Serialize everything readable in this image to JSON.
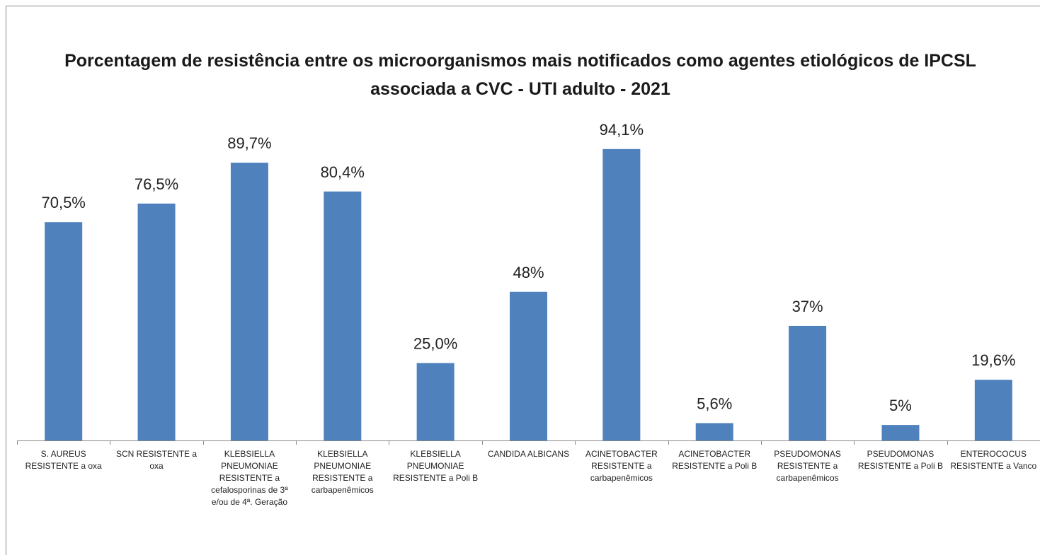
{
  "chart_data": {
    "type": "bar",
    "title": "Porcentagem de resistência entre os microorganismos mais notificados como agentes etiológicos de IPCSL associada a CVC - UTI adulto - 2021",
    "categories": [
      "S. AUREUS RESISTENTE a oxa",
      "SCN RESISTENTE a oxa",
      "KLEBSIELLA PNEUMONIAE RESISTENTE a cefalosporinas de 3ª e/ou de 4ª. Geração",
      "KLEBSIELLA PNEUMONIAE RESISTENTE a carbapenêmicos",
      "KLEBSIELLA PNEUMONIAE RESISTENTE a Poli B",
      "CANDIDA ALBICANS",
      "ACINETOBACTER RESISTENTE a carbapenêmicos",
      "ACINETOBACTER RESISTENTE a Poli B",
      "PSEUDOMONAS RESISTENTE a carbapenêmicos",
      "PSEUDOMONAS RESISTENTE a Poli B",
      "ENTEROCOCUS RESISTENTE a Vanco"
    ],
    "values": [
      70.5,
      76.5,
      89.7,
      80.4,
      25.0,
      48,
      94.1,
      5.6,
      37,
      5,
      19.6
    ],
    "value_labels": [
      "70,5%",
      "76,5%",
      "89,7%",
      "80,4%",
      "25,0%",
      "48%",
      "94,1%",
      "5,6%",
      "37%",
      "5%",
      "19,6%"
    ],
    "color": "#4f81bd",
    "ylim": [
      0,
      100
    ]
  }
}
